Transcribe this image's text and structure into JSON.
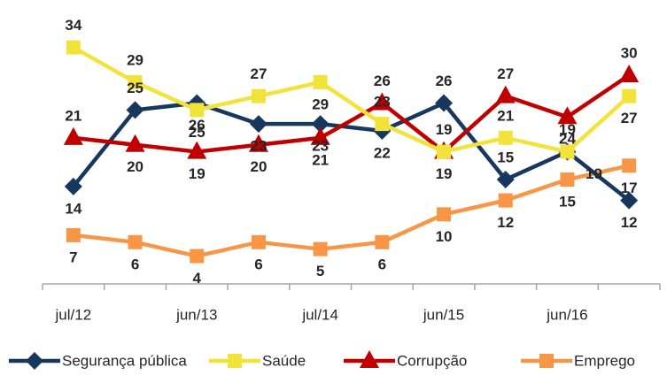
{
  "chart_data": {
    "type": "line",
    "categories": [
      "jul/12",
      null,
      "jun/13",
      null,
      "jul/14",
      null,
      "jun/15",
      null,
      "jun/16",
      null
    ],
    "ylim": [
      0,
      37
    ],
    "series": [
      {
        "name": "Segurança pública",
        "color": "#17375e",
        "values": [
          14,
          25,
          26,
          23,
          23,
          22,
          26,
          15,
          19,
          12
        ]
      },
      {
        "name": "Saúde",
        "color": "#f2e33a",
        "values": [
          34,
          29,
          25,
          27,
          29,
          23,
          19,
          21,
          19,
          27
        ]
      },
      {
        "name": "Corrupção",
        "color": "#c00000",
        "values": [
          21,
          20,
          19,
          20,
          21,
          26,
          19,
          27,
          24,
          30
        ]
      },
      {
        "name": "Emprego",
        "color": "#f79646",
        "values": [
          7,
          6,
          4,
          6,
          5,
          6,
          10,
          12,
          15,
          17
        ]
      }
    ]
  }
}
